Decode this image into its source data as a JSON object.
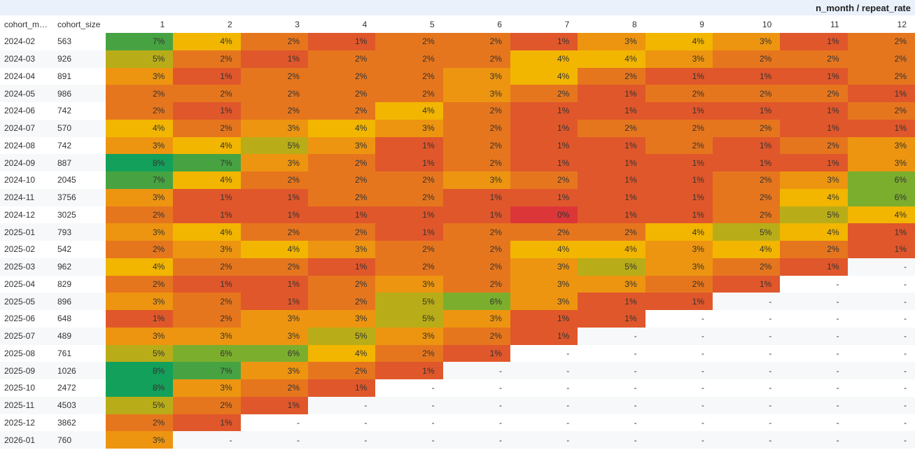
{
  "header_title": "n_month / repeat_rate",
  "columns": [
    "cohort_m…",
    "cohort_size",
    "1",
    "2",
    "3",
    "4",
    "5",
    "6",
    "7",
    "8",
    "9",
    "10",
    "11",
    "12"
  ],
  "empty_marker": "-",
  "color_scale": {
    "0": "#dc3638",
    "1": "#e0572b",
    "2": "#e6761e",
    "3": "#ed9510",
    "4": "#f2b600",
    "5": "#b8ad18",
    "6": "#7cae2e",
    "7": "#47a342",
    "8": "#13a05a"
  },
  "rows": [
    {
      "cohort_month": "2024-02",
      "cohort_size": "563",
      "rates": [
        7,
        4,
        2,
        1,
        2,
        2,
        1,
        3,
        4,
        3,
        1,
        2
      ]
    },
    {
      "cohort_month": "2024-03",
      "cohort_size": "926",
      "rates": [
        5,
        2,
        1,
        2,
        2,
        2,
        4,
        4,
        3,
        2,
        2,
        2
      ]
    },
    {
      "cohort_month": "2024-04",
      "cohort_size": "891",
      "rates": [
        3,
        1,
        2,
        2,
        2,
        3,
        4,
        2,
        1,
        1,
        1,
        2
      ]
    },
    {
      "cohort_month": "2024-05",
      "cohort_size": "986",
      "rates": [
        2,
        2,
        2,
        2,
        2,
        3,
        2,
        1,
        2,
        2,
        2,
        1
      ]
    },
    {
      "cohort_month": "2024-06",
      "cohort_size": "742",
      "rates": [
        2,
        1,
        2,
        2,
        4,
        2,
        1,
        1,
        1,
        1,
        1,
        2
      ]
    },
    {
      "cohort_month": "2024-07",
      "cohort_size": "570",
      "rates": [
        4,
        2,
        3,
        4,
        3,
        2,
        1,
        2,
        2,
        2,
        1,
        1
      ]
    },
    {
      "cohort_month": "2024-08",
      "cohort_size": "742",
      "rates": [
        3,
        4,
        5,
        3,
        1,
        2,
        1,
        1,
        2,
        1,
        2,
        3
      ]
    },
    {
      "cohort_month": "2024-09",
      "cohort_size": "887",
      "rates": [
        8,
        7,
        3,
        2,
        1,
        2,
        1,
        1,
        1,
        1,
        1,
        3
      ]
    },
    {
      "cohort_month": "2024-10",
      "cohort_size": "2045",
      "rates": [
        7,
        4,
        2,
        2,
        2,
        3,
        2,
        1,
        1,
        2,
        3,
        6
      ]
    },
    {
      "cohort_month": "2024-11",
      "cohort_size": "3756",
      "rates": [
        3,
        1,
        1,
        2,
        2,
        1,
        1,
        1,
        1,
        2,
        4,
        6
      ]
    },
    {
      "cohort_month": "2024-12",
      "cohort_size": "3025",
      "rates": [
        2,
        1,
        1,
        1,
        1,
        1,
        0,
        1,
        1,
        2,
        5,
        4
      ]
    },
    {
      "cohort_month": "2025-01",
      "cohort_size": "793",
      "rates": [
        3,
        4,
        2,
        2,
        1,
        2,
        2,
        2,
        4,
        5,
        4,
        1
      ]
    },
    {
      "cohort_month": "2025-02",
      "cohort_size": "542",
      "rates": [
        2,
        3,
        4,
        3,
        2,
        2,
        4,
        4,
        3,
        4,
        2,
        1
      ]
    },
    {
      "cohort_month": "2025-03",
      "cohort_size": "962",
      "rates": [
        4,
        2,
        2,
        1,
        2,
        2,
        3,
        5,
        3,
        2,
        1,
        null
      ]
    },
    {
      "cohort_month": "2025-04",
      "cohort_size": "829",
      "rates": [
        2,
        1,
        1,
        2,
        3,
        2,
        3,
        3,
        2,
        1,
        null,
        null
      ]
    },
    {
      "cohort_month": "2025-05",
      "cohort_size": "896",
      "rates": [
        3,
        2,
        1,
        2,
        5,
        6,
        3,
        1,
        1,
        null,
        null,
        null
      ]
    },
    {
      "cohort_month": "2025-06",
      "cohort_size": "648",
      "rates": [
        1,
        2,
        3,
        3,
        5,
        3,
        1,
        1,
        null,
        null,
        null,
        null
      ]
    },
    {
      "cohort_month": "2025-07",
      "cohort_size": "489",
      "rates": [
        3,
        3,
        3,
        5,
        3,
        2,
        1,
        null,
        null,
        null,
        null,
        null
      ]
    },
    {
      "cohort_month": "2025-08",
      "cohort_size": "761",
      "rates": [
        5,
        6,
        6,
        4,
        2,
        1,
        null,
        null,
        null,
        null,
        null,
        null
      ]
    },
    {
      "cohort_month": "2025-09",
      "cohort_size": "1026",
      "rates": [
        8,
        7,
        3,
        2,
        1,
        null,
        null,
        null,
        null,
        null,
        null,
        null
      ]
    },
    {
      "cohort_month": "2025-10",
      "cohort_size": "2472",
      "rates": [
        8,
        3,
        2,
        1,
        null,
        null,
        null,
        null,
        null,
        null,
        null,
        null
      ]
    },
    {
      "cohort_month": "2025-11",
      "cohort_size": "4503",
      "rates": [
        5,
        2,
        1,
        null,
        null,
        null,
        null,
        null,
        null,
        null,
        null,
        null
      ]
    },
    {
      "cohort_month": "2025-12",
      "cohort_size": "3862",
      "rates": [
        2,
        1,
        null,
        null,
        null,
        null,
        null,
        null,
        null,
        null,
        null,
        null
      ]
    },
    {
      "cohort_month": "2026-01",
      "cohort_size": "760",
      "rates": [
        3,
        null,
        null,
        null,
        null,
        null,
        null,
        null,
        null,
        null,
        null,
        null
      ]
    }
  ]
}
